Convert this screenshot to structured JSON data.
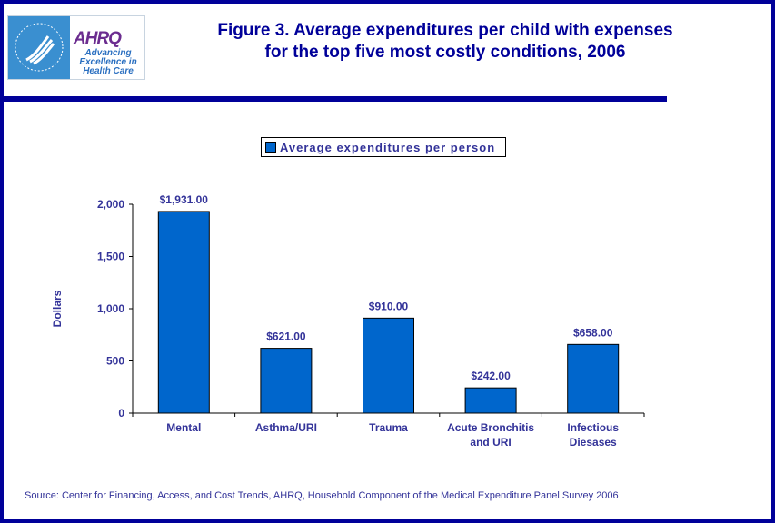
{
  "header": {
    "logo": {
      "hhs_icon": "hhs-eagle-icon",
      "brand": "AHRQ",
      "tagline": [
        "Advancing",
        "Excellence in",
        "Health Care"
      ]
    },
    "title_line1": "Figure 3. Average expenditures per child with expenses",
    "title_line2": "for the top five most costly conditions, 2006"
  },
  "colors": {
    "frame": "#000099",
    "bar": "#0066cc",
    "text": "#333399"
  },
  "chart_data": {
    "type": "bar",
    "title": "Figure 3. Average expenditures per child with expenses for the top five most costly conditions, 2006",
    "categories": [
      [
        "Mental"
      ],
      [
        "Asthma/URI"
      ],
      [
        "Trauma"
      ],
      [
        "Acute Bronchitis",
        "and URI"
      ],
      [
        "Infectious",
        "Diesases"
      ]
    ],
    "series": [
      {
        "name": "Average expenditures per person",
        "values": [
          1931,
          621,
          910,
          242,
          658
        ]
      }
    ],
    "data_labels": [
      "$1,931.00",
      "$621.00",
      "$910.00",
      "$242.00",
      "$658.00"
    ],
    "xlabel": "",
    "ylabel": "Dollars",
    "ylim": [
      0,
      2000
    ],
    "yticks": [
      0,
      500,
      1000,
      1500,
      2000
    ],
    "ytick_labels": [
      "0",
      "500",
      "1,000",
      "1,500",
      "2,000"
    ],
    "grid": false,
    "legend_position": "top-center"
  },
  "legend": {
    "label": "Average expenditures per person"
  },
  "footer": {
    "source": "Source: Center for Financing, Access, and Cost Trends, AHRQ, Household Component of the Medical Expenditure Panel Survey 2006"
  }
}
